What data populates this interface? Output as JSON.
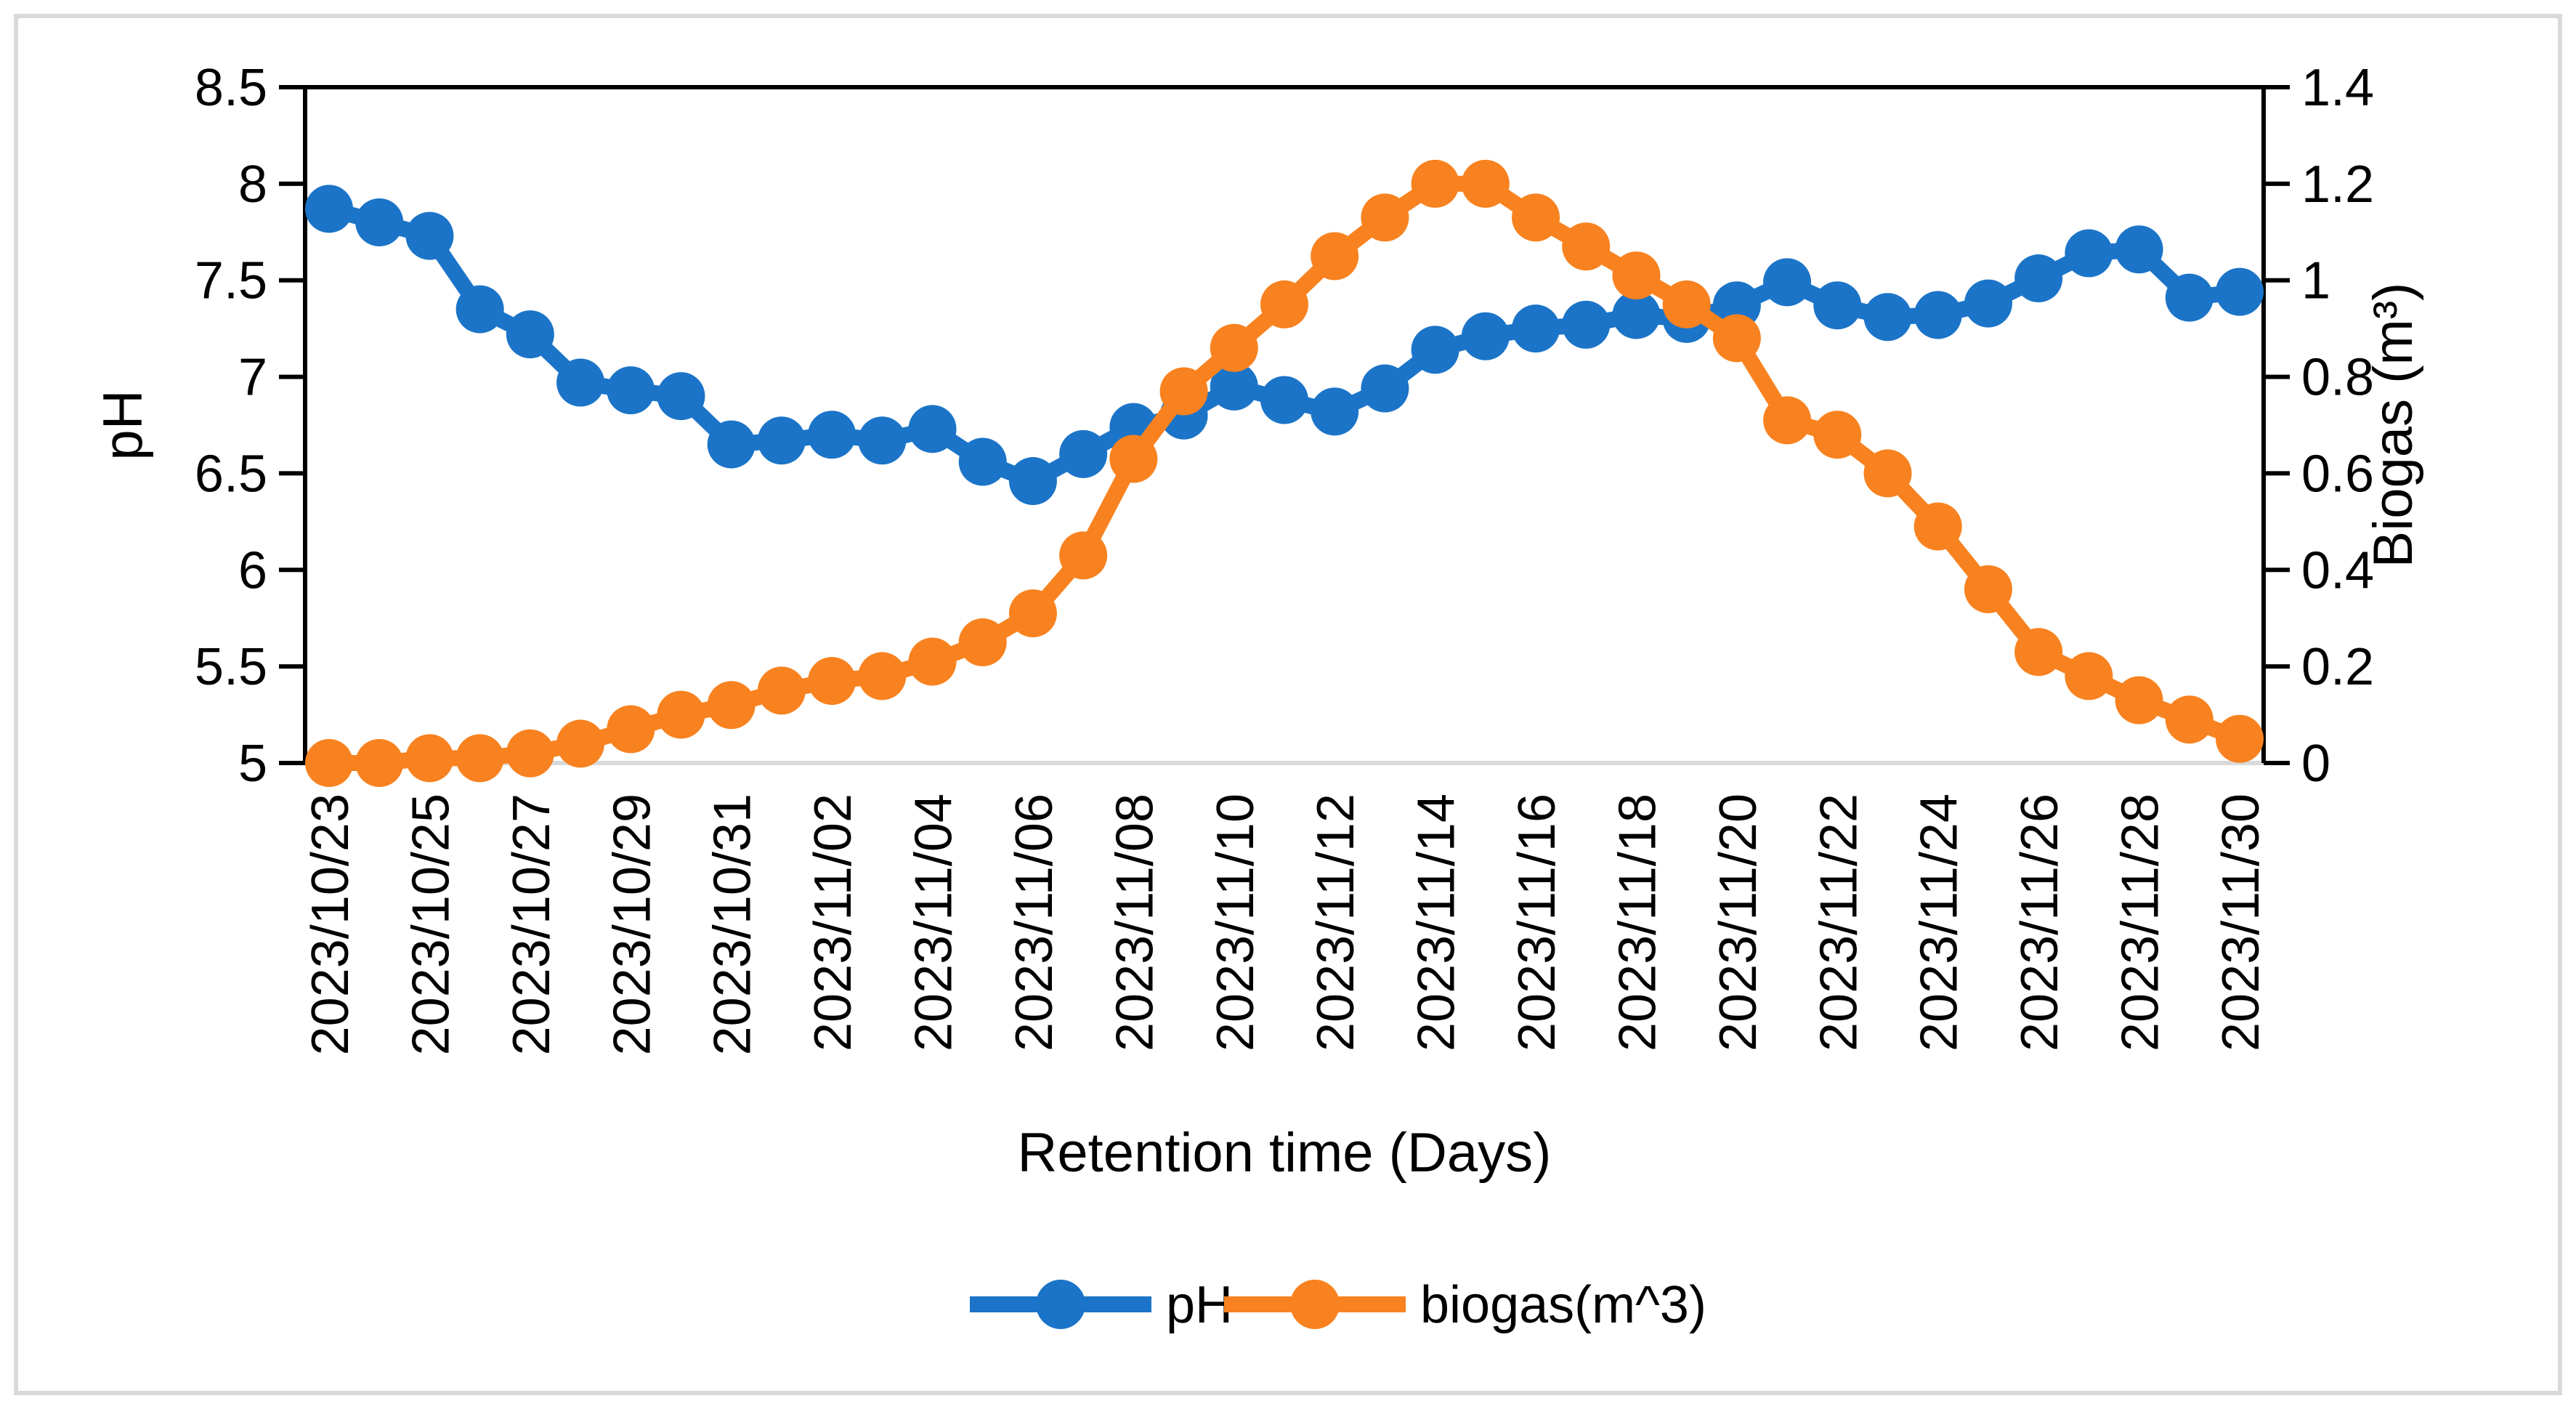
{
  "figure": {
    "background": "#ffffff",
    "frame_color": "#d9d9d9",
    "x_axis_line_color": "#d9d9d9",
    "axis_color": "#000000"
  },
  "chart_data": {
    "type": "line",
    "xlabel": "Retention time (Days)",
    "x_label_every": 2,
    "grid": false,
    "legend_position": "bottom",
    "x": [
      "2023/10/23",
      "2023/10/24",
      "2023/10/25",
      "2023/10/26",
      "2023/10/27",
      "2023/10/28",
      "2023/10/29",
      "2023/10/30",
      "2023/10/31",
      "2023/11/01",
      "2023/11/02",
      "2023/11/03",
      "2023/11/04",
      "2023/11/05",
      "2023/11/06",
      "2023/11/07",
      "2023/11/08",
      "2023/11/09",
      "2023/11/10",
      "2023/11/11",
      "2023/11/12",
      "2023/11/13",
      "2023/11/14",
      "2023/11/15",
      "2023/11/16",
      "2023/11/17",
      "2023/11/18",
      "2023/11/19",
      "2023/11/20",
      "2023/11/21",
      "2023/11/22",
      "2023/11/23",
      "2023/11/24",
      "2023/11/25",
      "2023/11/26",
      "2023/11/27",
      "2023/11/28",
      "2023/11/29",
      "2023/11/30"
    ],
    "left_axis": {
      "title": "pH",
      "min": 5,
      "max": 8.5,
      "ticks": [
        "5",
        "5.5",
        "6",
        "6.5",
        "7",
        "7.5",
        "8",
        "8.5"
      ]
    },
    "right_axis": {
      "title": "Biogas (m³)",
      "min": 0,
      "max": 1.4,
      "ticks": [
        "0",
        "0.2",
        "0.4",
        "0.6",
        "0.8",
        "1",
        "1.2",
        "1.4"
      ]
    },
    "series": [
      {
        "name": "pH",
        "axis": "left",
        "color": "#1b74c8",
        "values": [
          7.87,
          7.8,
          7.73,
          7.35,
          7.22,
          6.97,
          6.93,
          6.9,
          6.65,
          6.67,
          6.7,
          6.67,
          6.73,
          6.56,
          6.46,
          6.6,
          6.74,
          6.8,
          6.95,
          6.88,
          6.82,
          6.94,
          7.14,
          7.21,
          7.25,
          7.27,
          7.32,
          7.3,
          7.37,
          7.49,
          7.37,
          7.31,
          7.32,
          7.38,
          7.51,
          7.64,
          7.66,
          7.41,
          7.44
        ]
      },
      {
        "name": "biogas(m^3)",
        "axis": "right",
        "color": "#f8821f",
        "values": [
          0.0,
          0.0,
          0.01,
          0.01,
          0.02,
          0.04,
          0.07,
          0.1,
          0.12,
          0.15,
          0.17,
          0.18,
          0.21,
          0.25,
          0.31,
          0.43,
          0.63,
          0.77,
          0.86,
          0.95,
          1.05,
          1.13,
          1.2,
          1.2,
          1.13,
          1.07,
          1.01,
          0.95,
          0.88,
          0.71,
          0.68,
          0.6,
          0.49,
          0.36,
          0.23,
          0.18,
          0.13,
          0.09,
          0.05
        ]
      }
    ],
    "legend": [
      {
        "label": "pH",
        "color": "#1b74c8"
      },
      {
        "label": "biogas(m^3)",
        "color": "#f8821f"
      }
    ]
  }
}
